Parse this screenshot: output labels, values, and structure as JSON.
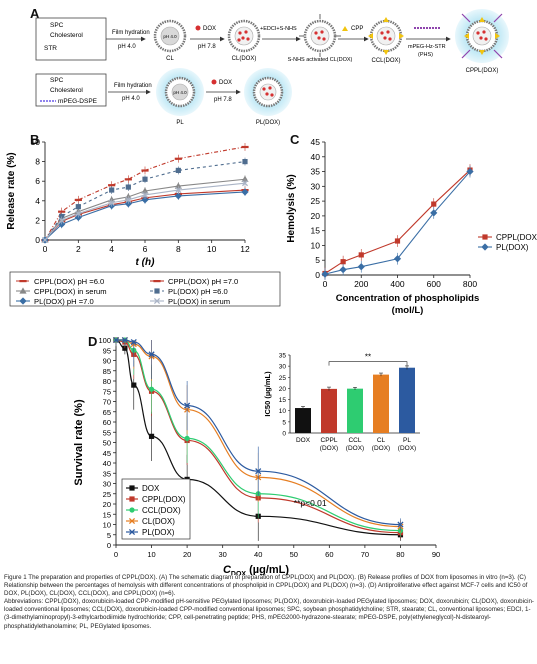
{
  "panels": {
    "a": "A",
    "b": "B",
    "c": "C",
    "d": "D"
  },
  "schemeA": {
    "row1": {
      "items": [
        "SPC",
        "Cholesterol",
        "STR"
      ],
      "step1_top": "Film hydration",
      "step1_bottom": "pH 4.0",
      "cl_label": "CL",
      "core_ph": "pH 4.0",
      "dox_tag": "DOX",
      "step2_bottom": "pH 7.8",
      "cl_dox_label": "CL(DOX)",
      "step3_top": "+EDCI+S-NHS",
      "snhs_label": "S-NHS activated CL(DOX)",
      "cpp_tag": "CPP",
      "ccl_label": "CCL(DOX)",
      "step5_top": "mPEG-Hz-STR",
      "step5_bottom": "(PHS)",
      "cppl_label": "CPPL(DOX)"
    },
    "row2": {
      "items": [
        "SPC",
        "Cholesterol",
        "mPEG-DSPE"
      ],
      "step1_top": "Film hydration",
      "step1_bottom": "pH 4.0",
      "pl_label": "PL",
      "core_ph": "pH 4.0",
      "dox_tag": "DOX",
      "step2_bottom": "pH 7.8",
      "pl_dox_label": "PL(DOX)"
    }
  },
  "chart_data": [
    {
      "panel": "B",
      "type": "line",
      "ylabel": "Release rate (%)",
      "xlabel": "t (h)",
      "xlim": [
        0,
        12
      ],
      "ylim": [
        0,
        10
      ],
      "xticks": [
        0,
        2,
        4,
        6,
        8,
        10,
        12
      ],
      "yticks": [
        0,
        2,
        4,
        6,
        8,
        10
      ],
      "x": [
        0,
        1,
        2,
        4,
        5,
        6,
        8,
        12
      ],
      "series": [
        {
          "name": "CPPL(DOX) pH =6.0",
          "color": "#c0392b",
          "dash": "4,2,1,2",
          "marker": "dash",
          "values": [
            0,
            2.9,
            4.1,
            5.6,
            6.2,
            7.1,
            8.3,
            9.5
          ]
        },
        {
          "name": "CPPL(DOX) pH =7.0",
          "color": "#c0392b",
          "dash": "",
          "marker": "dash",
          "values": [
            0,
            1.9,
            2.6,
            3.6,
            3.9,
            4.3,
            4.7,
            5.1
          ]
        },
        {
          "name": "CPPL(DOX) in serum",
          "color": "#888888",
          "dash": "",
          "marker": "triangle",
          "values": [
            0,
            2.2,
            2.9,
            4.1,
            4.4,
            5.0,
            5.5,
            6.2
          ]
        },
        {
          "name": "PL(DOX) pH =6.0",
          "color": "#4f6d8f",
          "dash": "3,3",
          "marker": "square",
          "values": [
            0,
            2.4,
            3.4,
            5.1,
            5.4,
            6.2,
            7.1,
            8.0
          ]
        },
        {
          "name": "PL(DOX) pH =7.0",
          "color": "#3a6ea5",
          "dash": "",
          "marker": "diamond",
          "values": [
            0,
            1.6,
            2.3,
            3.5,
            3.7,
            4.1,
            4.5,
            4.9
          ]
        },
        {
          "name": "PL(DOX) in serum",
          "color": "#aab4c6",
          "dash": "",
          "marker": "cross",
          "values": [
            0,
            2.0,
            2.7,
            3.8,
            4.1,
            4.6,
            5.1,
            5.8
          ]
        }
      ]
    },
    {
      "panel": "C",
      "type": "line",
      "ylabel": "Hemolysis (%)",
      "xlabel": "Concentration of phospholipids (mol/L)",
      "xlim": [
        0,
        800
      ],
      "ylim": [
        0,
        45
      ],
      "xticks": [
        0,
        200,
        400,
        600,
        800
      ],
      "yticks": [
        0,
        5,
        10,
        15,
        20,
        25,
        30,
        35,
        40,
        45
      ],
      "x": [
        0,
        100,
        200,
        400,
        600,
        800
      ],
      "series": [
        {
          "name": "CPPL(DOX)",
          "color": "#c0392b",
          "marker": "square",
          "values": [
            0.5,
            4.5,
            6.8,
            11.5,
            24.0,
            35.5
          ]
        },
        {
          "name": "PL(DOX)",
          "color": "#3a6ea5",
          "marker": "diamond",
          "values": [
            0.3,
            1.8,
            2.8,
            5.5,
            21.0,
            35.0
          ]
        }
      ],
      "legend_position": "right"
    },
    {
      "panel": "D",
      "type": "line",
      "ylabel": "Survival rate (%)",
      "xlabel": "C_DOX (µg/mL)",
      "xlim": [
        0,
        90
      ],
      "ylim": [
        0,
        100
      ],
      "xticks": [
        0,
        10,
        20,
        30,
        40,
        50,
        60,
        70,
        80,
        90
      ],
      "yticks": [
        0,
        5,
        10,
        15,
        20,
        25,
        30,
        35,
        40,
        45,
        50,
        55,
        60,
        65,
        70,
        75,
        80,
        85,
        90,
        95,
        100
      ],
      "x": [
        0,
        2.5,
        5,
        10,
        20,
        40,
        80
      ],
      "series": [
        {
          "name": "DOX",
          "color": "#111111",
          "marker": "square",
          "values": [
            100,
            96,
            78,
            53,
            32,
            14,
            5
          ]
        },
        {
          "name": "CPPL(DOX)",
          "color": "#c0392b",
          "marker": "square",
          "values": [
            100,
            99,
            93,
            75,
            51,
            23,
            6
          ]
        },
        {
          "name": "CCL(DOX)",
          "color": "#2ecc71",
          "marker": "circle",
          "values": [
            100,
            100,
            95,
            76,
            52,
            25,
            7
          ]
        },
        {
          "name": "CL(DOX)",
          "color": "#e67e22",
          "marker": "cross",
          "values": [
            100,
            100,
            98,
            92,
            66,
            33,
            9
          ]
        },
        {
          "name": "PL(DOX)",
          "color": "#2c5aa0",
          "marker": "cross",
          "values": [
            100,
            100,
            99,
            93,
            68,
            36,
            10
          ]
        }
      ],
      "annotation": "**p<0.01",
      "legend_position": "bottom-left"
    },
    {
      "panel": "D-inset",
      "type": "bar",
      "ylabel": "IC50 (µg/mL)",
      "ylim": [
        0,
        35
      ],
      "yticks": [
        0,
        5,
        10,
        15,
        20,
        25,
        30,
        35
      ],
      "categories": [
        "DOX",
        "CPPL (DOX)",
        "CCL (DOX)",
        "CL (DOX)",
        "PL (DOX)"
      ],
      "values": [
        11.2,
        19.8,
        19.9,
        26.2,
        29.3
      ],
      "errors": [
        0.7,
        0.8,
        0.6,
        0.7,
        0.8
      ],
      "colors": [
        "#111111",
        "#c0392b",
        "#2ecc71",
        "#e67e22",
        "#2c5aa0"
      ],
      "significance": "**"
    }
  ],
  "caption": {
    "title": "Figure 1 The preparation and properties of CPPL(DOX). (A) The schematic diagram of preparation of CPPL(DOX) and PL(DOX). (B) Release profiles of DOX from liposomes in vitro (n=3). (C) Relationship between the percentages of hemolysis with different concentrations of phospholipid in CPPL(DOX) and PL(DOX) (n=3). (D) Antiproliferative effect against MCF-7 cells and IC50 of DOX, PL(DOX), CL(DOX), CCL(DOX), and CPPL(DOX) (n=6).",
    "abbrev": "Abbreviations: CPPL(DOX), doxorubicin-loaded CPP-modified pH-sensitive PEGylated liposomes; PL(DOX), doxorubicin-loaded PEGylated liposomes; DOX, doxorubicin; CL(DOX), doxorubicin-loaded conventional liposomes; CCL(DOX), doxorubicin-loaded CPP-modified conventional liposomes; SPC, soybean phosphatidylcholine; STR, stearate; CL, conventional liposomes; EDCI, 1-(3-dimethylaminopropyl)-3-ethylcarbodiimide hydrochloride; CPP, cell-penetrating peptide; PHS, mPEG2000-hydrazone-stearate; mPEG-DSPE, poly(ethyleneglycol)-N-distearoyl-phosphatidylethanolamine; PL, PEGylated liposomes."
  }
}
